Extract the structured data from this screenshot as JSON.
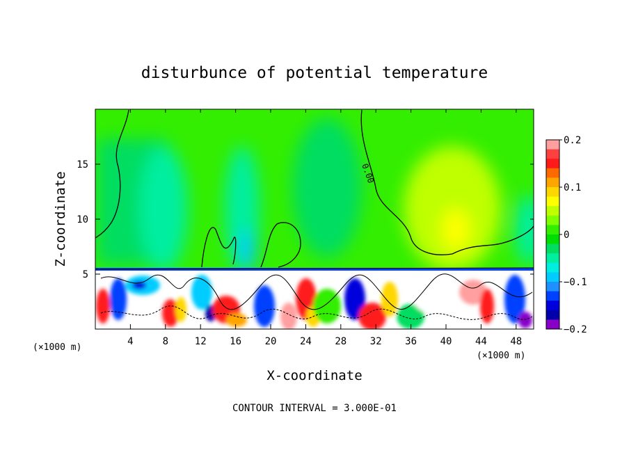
{
  "chart_data": {
    "type": "heatmap",
    "title": "disturbunce of potential temperature",
    "xlabel": "X-coordinate",
    "ylabel": "Z-coordinate",
    "x_unit": "(×1000 m)",
    "z_unit": "(×1000 m)",
    "xlim": [
      0,
      50
    ],
    "ylim": [
      0,
      20
    ],
    "x_ticks": [
      4,
      8,
      12,
      16,
      20,
      24,
      28,
      32,
      36,
      40,
      44,
      48
    ],
    "y_ticks": [
      5,
      10,
      15
    ],
    "colorbar": {
      "range": [
        -0.2,
        0.2
      ],
      "ticks": [
        "0.2",
        "0.1",
        "0",
        "−0.1",
        "−0.2"
      ],
      "colors": [
        "#ff9f9f",
        "#ff4040",
        "#ff1a1a",
        "#ff6a00",
        "#ffa500",
        "#ffd700",
        "#ffff00",
        "#bfff00",
        "#7fff00",
        "#33ee00",
        "#00dd00",
        "#00dd60",
        "#00eea0",
        "#00eedd",
        "#00ccff",
        "#1e90ff",
        "#0040ff",
        "#0000dd",
        "#0000aa",
        "#8800c8"
      ]
    },
    "contour_label": "0.00",
    "contour_interval_note": "CONTOUR INTERVAL = 3.000E-01",
    "grid": false,
    "legend": "right (colorbar)"
  }
}
